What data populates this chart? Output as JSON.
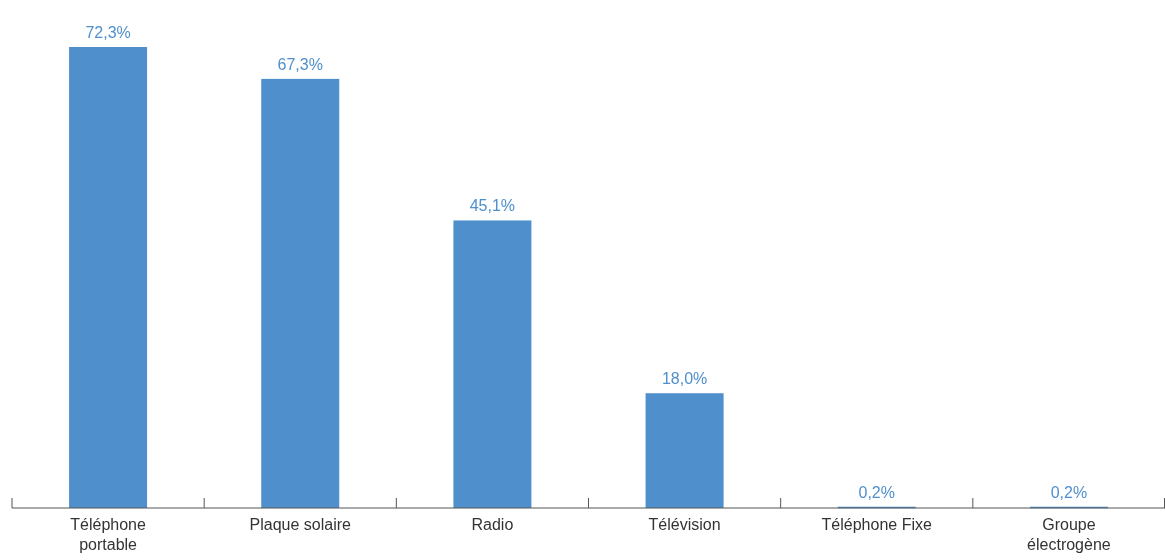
{
  "chart_data": {
    "type": "bar",
    "categories": [
      "Téléphone portable",
      "Plaque solaire",
      "Radio",
      "Télévision",
      "Téléphone Fixe",
      "Groupe électrogène"
    ],
    "values": [
      72.3,
      67.3,
      45.1,
      18.0,
      0.2,
      0.2
    ],
    "value_labels": [
      "72,3%",
      "67,3%",
      "45,1%",
      "18,0%",
      "0,2%",
      "0,2%"
    ],
    "color": "#4f8fcc"
  }
}
